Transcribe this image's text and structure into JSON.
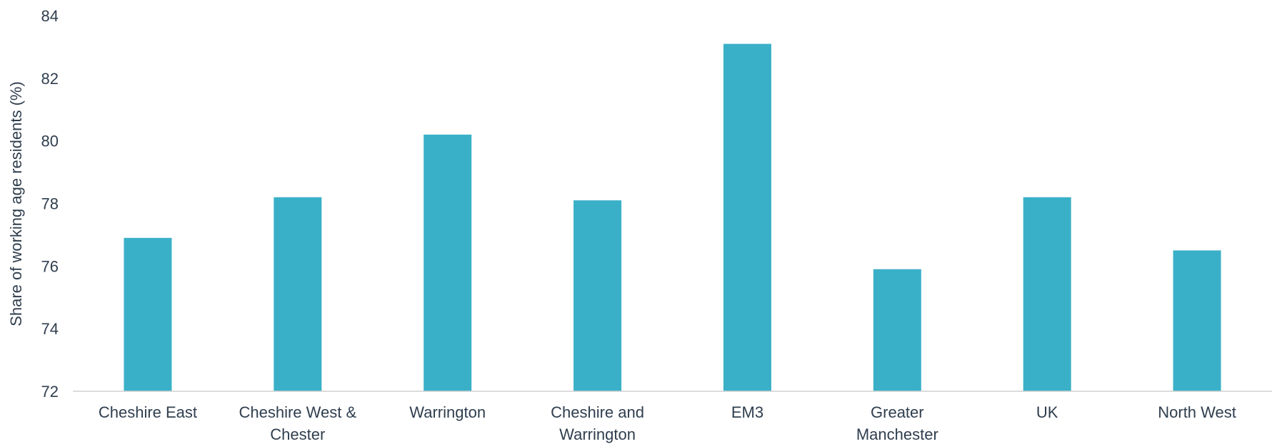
{
  "chart_data": {
    "type": "bar",
    "title": "",
    "xlabel": "",
    "ylabel": "Share of working age residents (%)",
    "ylim": [
      72,
      84
    ],
    "yticks": [
      72,
      74,
      76,
      78,
      80,
      82,
      84
    ],
    "grid": false,
    "bar_color": "#3ab0c8",
    "categories": [
      [
        "Cheshire East"
      ],
      [
        "Cheshire West &",
        "Chester"
      ],
      [
        "Warrington"
      ],
      [
        "Cheshire and",
        "Warrington"
      ],
      [
        "EM3"
      ],
      [
        "Greater",
        "Manchester"
      ],
      [
        "UK"
      ],
      [
        "North West"
      ]
    ],
    "values": [
      76.9,
      78.2,
      80.2,
      78.1,
      83.1,
      75.9,
      78.2,
      76.5
    ]
  }
}
